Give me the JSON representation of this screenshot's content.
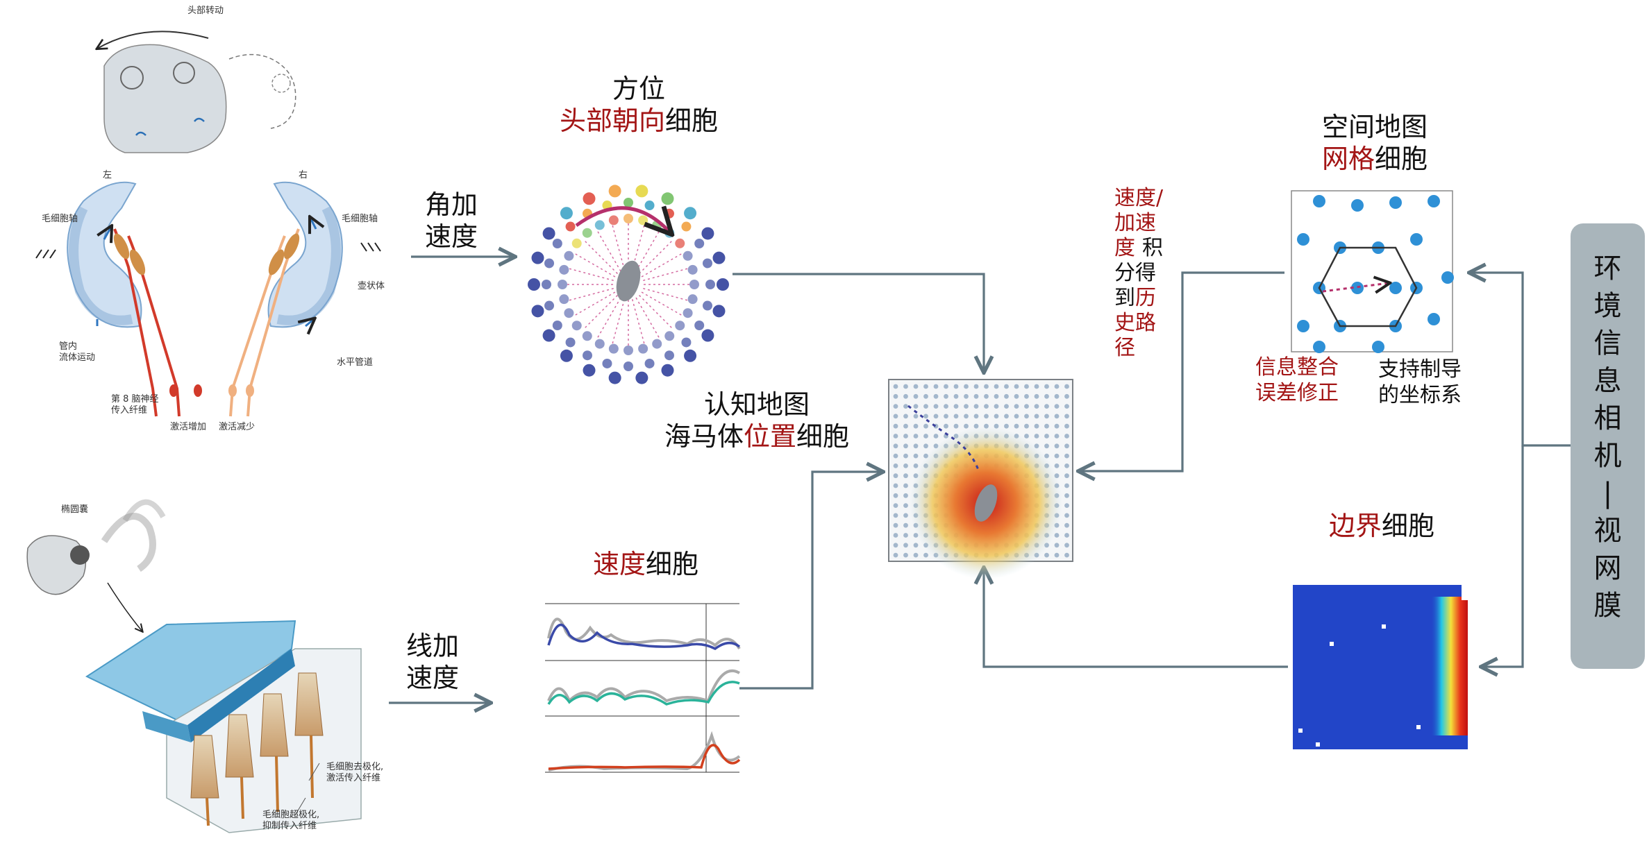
{
  "colors": {
    "arrow": "#5f7580",
    "accent_red": "#a31515",
    "sidebar_bg": "#a9b5bb",
    "grid_dot": "#2e90d6",
    "boundary_bg": "#1e3fc4"
  },
  "left_top": {
    "head_rotation": "头部转动",
    "left": "左",
    "right": "右",
    "hair_bundle_l": "毛细胞轴",
    "hair_bundle_r": "毛细胞轴",
    "ampulla": "壶状体",
    "tube_flow": "管内\n流体运动",
    "horizontal_canal": "水平管道",
    "nerve": "第 8 脑神经\n传入纤维",
    "activation_up": "激活增加",
    "activation_down": "激活减少"
  },
  "left_bottom": {
    "utricle": "椭圆囊",
    "depolarize": "毛细胞去极化,\n激活传入纤维",
    "hyperpolarize": "毛细胞超极化,\n抑制传入纤维"
  },
  "arrows": {
    "angular": "角加\n速度",
    "linear": "线加\n速度"
  },
  "hd": {
    "title_black": "方位",
    "title_red": "头部朝向",
    "title_suffix": "细胞"
  },
  "speed": {
    "title_red": "速度",
    "title_suffix": "细胞"
  },
  "place": {
    "line1": "认知地图",
    "prefix": "海马体",
    "red": "位置",
    "suffix": "细胞"
  },
  "grid": {
    "line1": "空间地图",
    "red": "网格",
    "suffix": "细胞",
    "info_red": "信息整合\n误差修正",
    "support": "支持制导\n的坐标系"
  },
  "integration": {
    "red_part": "速度/\n加速\n度",
    "black_a": "积",
    "black_b": "分得",
    "black_c": "到",
    "red_b": "历\n史路\n径"
  },
  "boundary": {
    "red": "边界",
    "suffix": "细胞"
  },
  "sidebar": {
    "text": "环\n境\n信\n息\n相\n机\n|\n视\n网\n膜"
  }
}
